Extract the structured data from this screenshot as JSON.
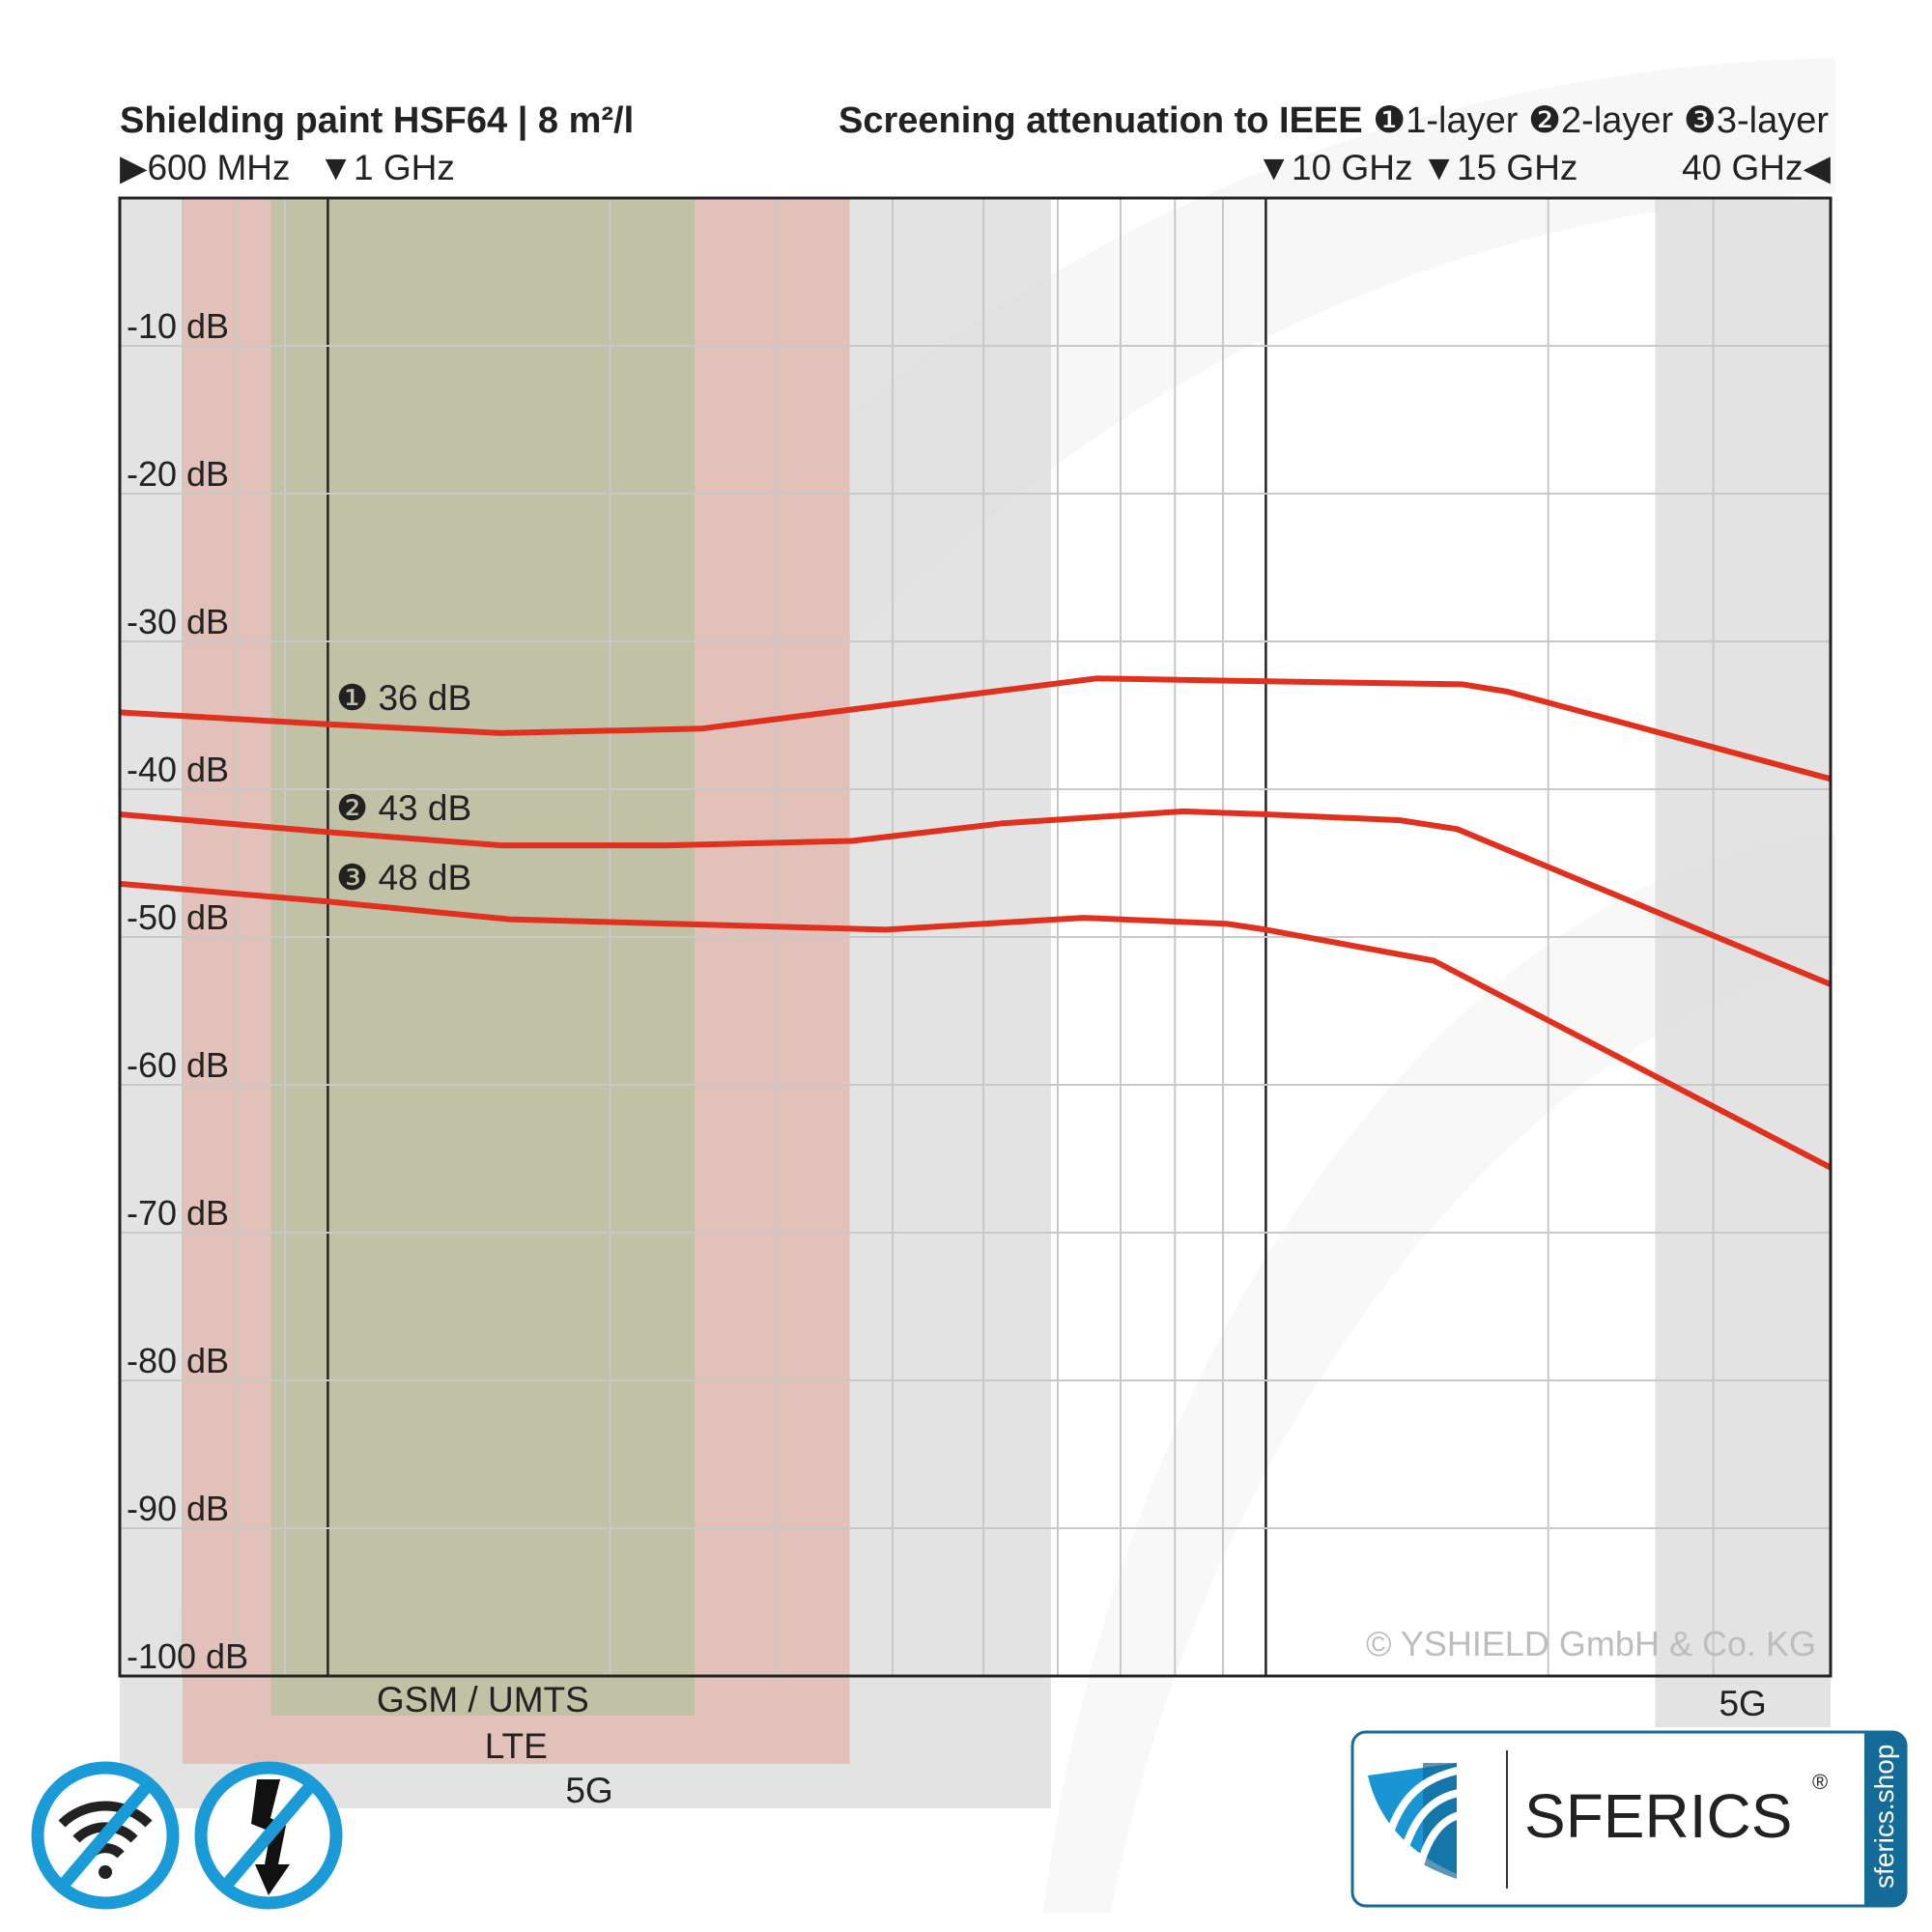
{
  "chart_data": {
    "type": "line",
    "title": "Shielding paint HSF64 | 8 m²/l",
    "subtitle": "Screening attenuation to IEEE",
    "legend": [
      {
        "marker": "❶",
        "label": "1-layer"
      },
      {
        "marker": "❷",
        "label": "2-layer"
      },
      {
        "marker": "❸",
        "label": "3-layer"
      }
    ],
    "x_scale": "log",
    "x_unit": "GHz",
    "xlim": [
      0.6,
      40
    ],
    "x_markers": [
      {
        "label": "600 MHz",
        "value": 0.6,
        "arrow": "▶"
      },
      {
        "label": "1 GHz",
        "value": 1,
        "arrow": "▼"
      },
      {
        "label": "10 GHz",
        "value": 10,
        "arrow": "▼"
      },
      {
        "label": "15 GHz",
        "value": 15,
        "arrow": "▼"
      },
      {
        "label": "40 GHz",
        "value": 40,
        "arrow": "◀"
      }
    ],
    "ylim": [
      -100,
      0
    ],
    "y_ticks": [
      {
        "value": -10,
        "label": "-10 dB"
      },
      {
        "value": -20,
        "label": "-20 dB"
      },
      {
        "value": -30,
        "label": "-30 dB"
      },
      {
        "value": -40,
        "label": "-40 dB"
      },
      {
        "value": -50,
        "label": "-50 dB"
      },
      {
        "value": -60,
        "label": "-60 dB"
      },
      {
        "value": -70,
        "label": "-70 dB"
      },
      {
        "value": -80,
        "label": "-80 dB"
      },
      {
        "value": -90,
        "label": "-90 dB"
      },
      {
        "value": -100,
        "label": "-100 dB"
      }
    ],
    "grid": true,
    "series": [
      {
        "name": "1-layer",
        "callout": "❶ 36 dB",
        "x": [
          0.6,
          1,
          1.53,
          2.5,
          6.6,
          10,
          16.2,
          18.1,
          40
        ],
        "y": [
          -34.8,
          -35.6,
          -36.2,
          -35.9,
          -32.5,
          -32.7,
          -32.9,
          -33.4,
          -39.3
        ]
      },
      {
        "name": "2-layer",
        "callout": "❷ 43 dB",
        "x": [
          0.6,
          1,
          1.53,
          2.31,
          3.62,
          5.25,
          8.17,
          10,
          13.9,
          16.0,
          40
        ],
        "y": [
          -41.7,
          -42.9,
          -43.8,
          -43.8,
          -43.5,
          -42.3,
          -41.5,
          -41.7,
          -42.1,
          -42.7,
          -53.2
        ]
      },
      {
        "name": "3-layer",
        "callout": "❸ 48 dB",
        "x": [
          0.6,
          1,
          1.56,
          3.93,
          6.39,
          9.07,
          10,
          15.1,
          40
        ],
        "y": [
          -46.4,
          -47.6,
          -48.8,
          -49.5,
          -48.7,
          -49.1,
          -49.5,
          -51.6,
          -65.6
        ]
      }
    ],
    "bands": [
      {
        "label": "5G",
        "from": 0.6,
        "to": 5.9,
        "color": "#d9d9d9"
      },
      {
        "label": "LTE",
        "from": 0.7,
        "to": 3.6,
        "color": "#e3b6ad"
      },
      {
        "label": "GSM / UMTS",
        "from": 0.87,
        "to": 2.46,
        "color": "#b5c09f"
      },
      {
        "label": "5G",
        "from": 26,
        "to": 40,
        "color": "#dcdcdc"
      }
    ],
    "copyright": "© YSHIELD GmbH & Co. KG"
  },
  "colors": {
    "curve": "#e0301e",
    "icon_blue": "#1a9ad6",
    "logo_dark": "#146b97",
    "logo_light": "#1a95d3"
  },
  "icons": [
    "no-wifi-icon",
    "no-electricity-icon",
    "sferics-shield-logo"
  ],
  "logo": {
    "brand": "SFERICS",
    "registered": "®",
    "url": "sferics.shop"
  }
}
